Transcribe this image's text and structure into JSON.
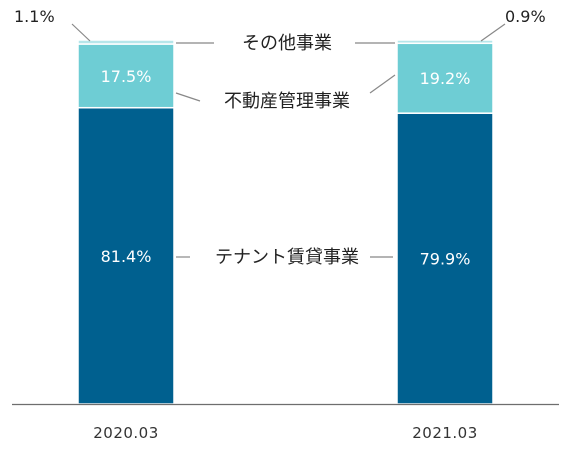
{
  "chart_data": {
    "type": "bar",
    "stacked": true,
    "normalized_percent": true,
    "categories": [
      "2020.03",
      "2021.03"
    ],
    "series": [
      {
        "name": "テナント賃貸事業",
        "values": [
          81.4,
          79.9
        ],
        "labels": [
          "81.4%",
          "79.9%"
        ],
        "color": "#00608f"
      },
      {
        "name": "不動産管理事業",
        "values": [
          17.5,
          19.2
        ],
        "labels": [
          "17.5%",
          "19.2%"
        ],
        "color": "#6ecdd4"
      },
      {
        "name": "その他事業",
        "values": [
          1.1,
          0.9
        ],
        "labels": [
          "1.1%",
          "0.9%"
        ],
        "color": "#b6e6ea"
      }
    ],
    "ylim": [
      0,
      100
    ],
    "grid": false,
    "legend": "inline-between-bars"
  }
}
